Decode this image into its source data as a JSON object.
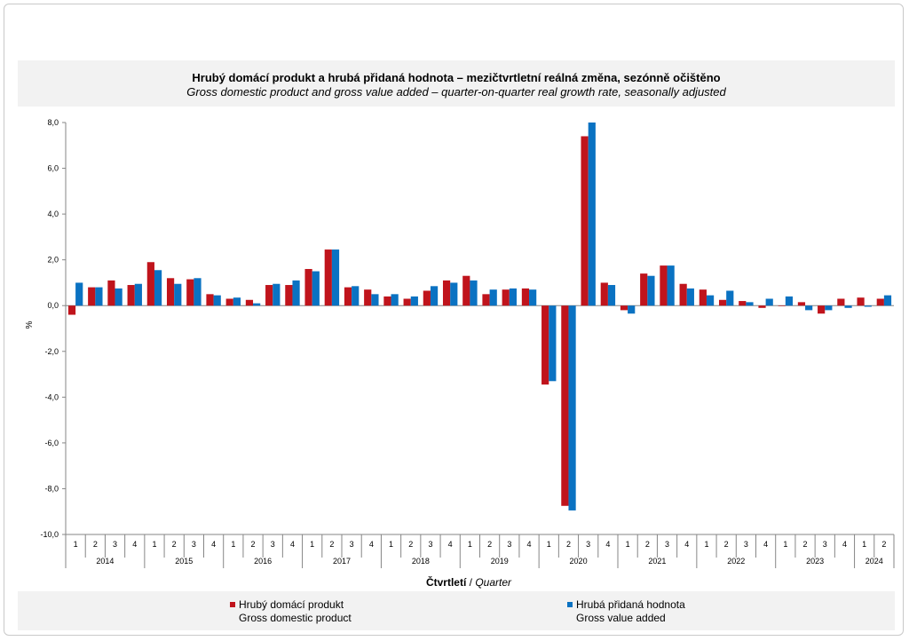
{
  "colors": {
    "gdp": "#c0141c",
    "gva": "#0a72c2"
  },
  "chart_data": {
    "type": "bar",
    "title": "Hrubý domácí produkt a hrubá přidaná hodnota – mezičtvrtletní reálná změna, sezónně očištěno",
    "subtitle": "Gross domestic product and gross value added – quarter-on-quarter real growth rate, seasonally adjusted",
    "ylabel": "%",
    "xlabel_cz": "Čtvrtletí",
    "xlabel_sep": " / ",
    "xlabel_en": "Quarter",
    "ylim": [
      -10,
      8
    ],
    "yticks": [
      "8,0",
      "6,0",
      "4,0",
      "2,0",
      "0,0",
      "-2,0",
      "-4,0",
      "-6,0",
      "-8,0",
      "-10,0"
    ],
    "years": [
      {
        "label": "2014",
        "quarters": 4
      },
      {
        "label": "2015",
        "quarters": 4
      },
      {
        "label": "2016",
        "quarters": 4
      },
      {
        "label": "2017",
        "quarters": 4
      },
      {
        "label": "2018",
        "quarters": 4
      },
      {
        "label": "2019",
        "quarters": 4
      },
      {
        "label": "2020",
        "quarters": 4
      },
      {
        "label": "2021",
        "quarters": 4
      },
      {
        "label": "2022",
        "quarters": 4
      },
      {
        "label": "2023",
        "quarters": 4
      },
      {
        "label": "2024",
        "quarters": 2
      }
    ],
    "categories": [
      "1",
      "2",
      "3",
      "4",
      "1",
      "2",
      "3",
      "4",
      "1",
      "2",
      "3",
      "4",
      "1",
      "2",
      "3",
      "4",
      "1",
      "2",
      "3",
      "4",
      "1",
      "2",
      "3",
      "4",
      "1",
      "2",
      "3",
      "4",
      "1",
      "2",
      "3",
      "4",
      "1",
      "2",
      "3",
      "4",
      "1",
      "2",
      "3",
      "4",
      "1",
      "2"
    ],
    "series": [
      {
        "name": "Hrubý domácí produkt",
        "name_en": "Gross domestic product",
        "values": [
          -0.4,
          0.8,
          1.1,
          0.9,
          1.9,
          1.2,
          1.15,
          0.5,
          0.3,
          0.25,
          0.9,
          0.9,
          1.6,
          2.45,
          0.8,
          0.7,
          0.4,
          0.3,
          0.65,
          1.1,
          1.3,
          0.5,
          0.7,
          0.75,
          -3.45,
          -8.75,
          7.4,
          1.0,
          -0.2,
          1.4,
          1.75,
          0.95,
          0.7,
          0.25,
          0.2,
          -0.1,
          0.0,
          0.15,
          -0.35,
          0.3,
          0.35,
          0.3
        ]
      },
      {
        "name": "Hrubá přidaná hodnota",
        "name_en": "Gross value added",
        "values": [
          1.0,
          0.8,
          0.75,
          0.95,
          1.55,
          0.95,
          1.2,
          0.45,
          0.35,
          0.1,
          0.95,
          1.1,
          1.5,
          2.45,
          0.85,
          0.5,
          0.5,
          0.4,
          0.85,
          1.0,
          1.1,
          0.7,
          0.75,
          0.7,
          -3.3,
          -8.95,
          8.0,
          0.9,
          -0.35,
          1.3,
          1.75,
          0.75,
          0.45,
          0.65,
          0.15,
          0.3,
          0.4,
          -0.2,
          -0.2,
          -0.1,
          -0.05,
          0.45
        ]
      }
    ],
    "grid": false,
    "legend_position": "bottom"
  }
}
